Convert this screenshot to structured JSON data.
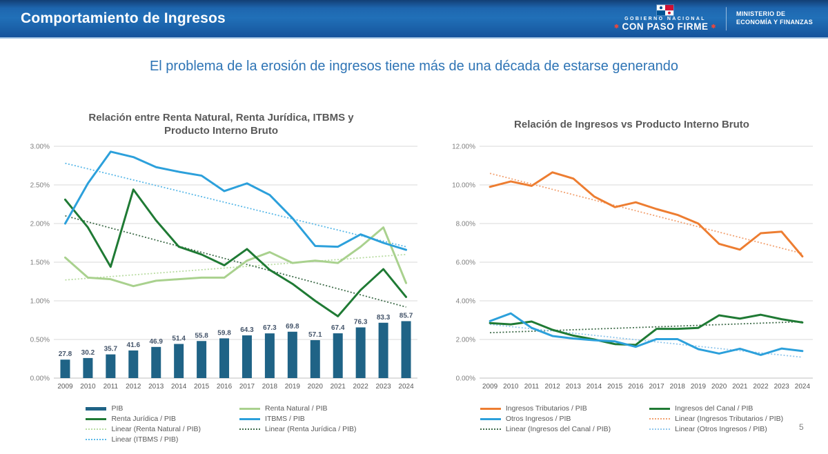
{
  "header": {
    "title": "Comportamiento de Ingresos",
    "logo": {
      "gobierno_line": "GOBIERNO NACIONAL",
      "slogan": "CON PASO FIRME",
      "star_glyph": "✱",
      "flag_icon": "panama-flag"
    },
    "ministry": {
      "line1": "MINISTERIO DE",
      "line2": "ECONOMÍA Y FINANZAS"
    }
  },
  "subtitle": "El problema de la erosión de ingresos tiene más de una década de estarse generando",
  "page_number": "5",
  "colors": {
    "header_blue": "#1A5EA8",
    "subtitle_blue": "#2E74B5",
    "title_gray": "#595959",
    "grid_gray": "#D9D9D9",
    "axis_label_gray": "#7F7F7F",
    "bar_label_navy": "#44546A",
    "red_accent": "#E8473C"
  },
  "chart_data": [
    {
      "type": "combo-bar-line",
      "title": "Relación entre Renta Natural, Renta Jurídica, ITBMS y Producto Interno Bruto",
      "categories": [
        "2009",
        "2010",
        "2011",
        "2012",
        "2013",
        "2014",
        "2015",
        "2016",
        "2017",
        "2018",
        "2019",
        "2020",
        "2021",
        "2022",
        "2023",
        "2024"
      ],
      "ylim": [
        0,
        3.0
      ],
      "ytick_step": 0.5,
      "ytick_format": "0.00%",
      "grid": true,
      "legend_position": "bottom",
      "bars": {
        "name": "PIB",
        "color": "#1F6386",
        "values": [
          27.8,
          30.2,
          35.7,
          41.6,
          46.9,
          51.4,
          55.8,
          59.8,
          64.3,
          67.3,
          69.8,
          57.1,
          67.4,
          76.3,
          83.3,
          85.7
        ],
        "labels_shown": true,
        "axis_scale_to_percent": 0.0086
      },
      "series": [
        {
          "name": "Renta Natural / PIB",
          "color": "#A9D18E",
          "style": "solid",
          "values": [
            1.56,
            1.3,
            1.28,
            1.19,
            1.26,
            1.28,
            1.3,
            1.3,
            1.52,
            1.63,
            1.49,
            1.52,
            1.49,
            1.7,
            1.95,
            1.23
          ]
        },
        {
          "name": "Renta Jurídica / PIB",
          "color": "#1F7A34",
          "style": "solid",
          "values": [
            2.31,
            1.95,
            1.44,
            2.44,
            2.04,
            1.7,
            1.6,
            1.46,
            1.67,
            1.4,
            1.22,
            1.0,
            0.8,
            1.14,
            1.41,
            1.05
          ]
        },
        {
          "name": "ITBMS / PIB",
          "color": "#2CA0DB",
          "style": "solid",
          "values": [
            2.0,
            2.52,
            2.93,
            2.86,
            2.73,
            2.67,
            2.62,
            2.42,
            2.52,
            2.37,
            2.07,
            1.71,
            1.7,
            1.86,
            1.75,
            1.66
          ]
        },
        {
          "name": "Linear (Renta Natural / PIB)",
          "color": "#B9DCA2",
          "style": "dotted",
          "trend": [
            1.27,
            1.6
          ]
        },
        {
          "name": "Linear (Renta Jurídica / PIB)",
          "color": "#3E6B49",
          "style": "dotted",
          "trend": [
            2.1,
            0.92
          ]
        },
        {
          "name": "Linear (ITBMS / PIB)",
          "color": "#58B8E8",
          "style": "dotted",
          "trend": [
            2.78,
            1.7
          ]
        }
      ],
      "legend": [
        "PIB",
        "Renta Natural / PIB",
        "Renta Jurídica / PIB",
        "ITBMS / PIB",
        "Linear (Renta Natural / PIB)",
        "Linear (Renta Jurídica / PIB)",
        "Linear (ITBMS / PIB)"
      ]
    },
    {
      "type": "line",
      "title": "Relación de Ingresos vs Producto Interno Bruto",
      "categories": [
        "2009",
        "2010",
        "2011",
        "2012",
        "2013",
        "2014",
        "2015",
        "2016",
        "2017",
        "2018",
        "2019",
        "2020",
        "2021",
        "2022",
        "2023",
        "2024"
      ],
      "ylim": [
        0,
        12.0
      ],
      "ytick_step": 2.0,
      "ytick_format": "0.00%",
      "grid": true,
      "legend_position": "bottom",
      "series": [
        {
          "name": "Ingresos Tributarios / PIB",
          "color": "#ED7D31",
          "style": "solid",
          "values": [
            9.9,
            10.18,
            9.95,
            10.65,
            10.33,
            9.4,
            8.85,
            9.1,
            8.75,
            8.45,
            8.0,
            6.95,
            6.65,
            7.5,
            7.58,
            6.3
          ]
        },
        {
          "name": "Ingresos del Canal / PIB",
          "color": "#1F7A34",
          "style": "solid",
          "values": [
            2.85,
            2.78,
            2.93,
            2.5,
            2.2,
            2.0,
            1.76,
            1.72,
            2.55,
            2.55,
            2.6,
            3.25,
            3.08,
            3.28,
            3.05,
            2.88
          ]
        },
        {
          "name": "Otros Ingresos / PIB",
          "color": "#2CA0DB",
          "style": "solid",
          "values": [
            2.95,
            3.35,
            2.6,
            2.18,
            2.05,
            1.96,
            1.9,
            1.62,
            2.02,
            2.02,
            1.5,
            1.27,
            1.52,
            1.2,
            1.53,
            1.4
          ]
        },
        {
          "name": "Linear (Ingresos Tributarios / PIB)",
          "color": "#F2A170",
          "style": "dotted",
          "trend": [
            10.6,
            6.45
          ]
        },
        {
          "name": "Linear (Ingresos del Canal / PIB)",
          "color": "#3E6B49",
          "style": "dotted",
          "trend": [
            2.35,
            2.92
          ]
        },
        {
          "name": "Linear (Otros Ingresos / PIB)",
          "color": "#8FC6EC",
          "style": "dotted",
          "trend": [
            2.78,
            1.08
          ]
        }
      ],
      "legend": [
        "Ingresos Tributarios / PIB",
        "Ingresos del Canal / PIB",
        "Otros Ingresos / PIB",
        "Linear (Ingresos Tributarios / PIB)",
        "Linear (Ingresos del Canal / PIB)",
        "Linear (Otros Ingresos / PIB)"
      ]
    }
  ]
}
